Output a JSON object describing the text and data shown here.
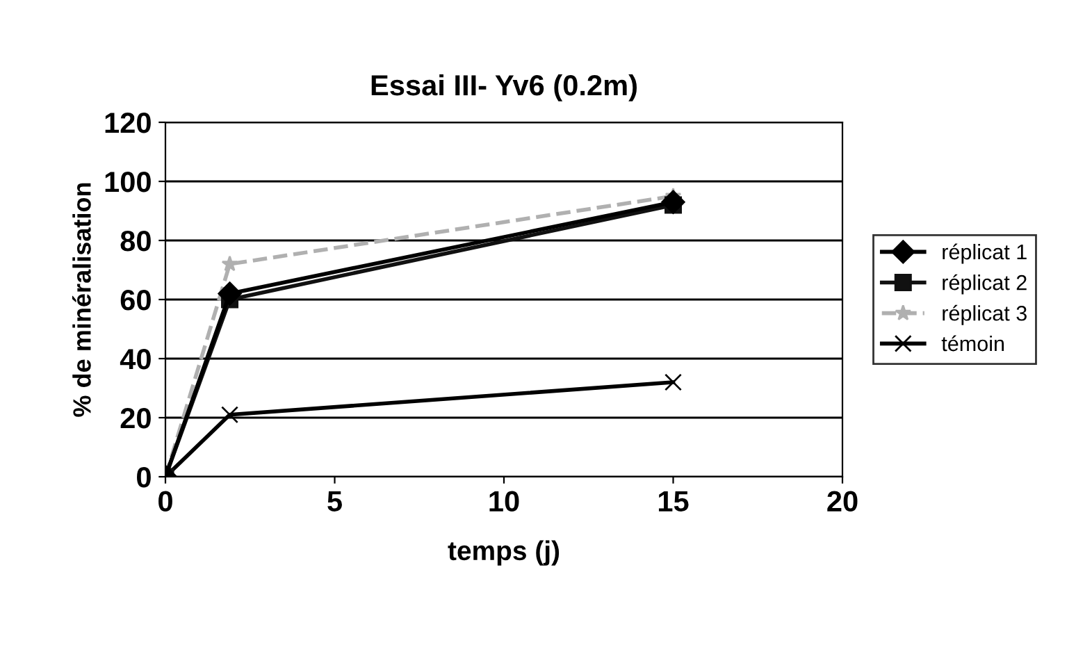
{
  "chart_data": {
    "type": "line",
    "title": "Essai III- Yv6 (0.2m)",
    "xlabel": "temps (j)",
    "ylabel": "% de minéralisation",
    "x": [
      0,
      1.9,
      15
    ],
    "series": [
      {
        "name": "réplicat 1",
        "color": "#000000",
        "marker": "diamond",
        "values": [
          0,
          62,
          93
        ]
      },
      {
        "name": "réplicat 2",
        "color": "#111111",
        "marker": "square",
        "values": [
          0,
          60,
          92
        ]
      },
      {
        "name": "réplicat 3",
        "color": "#b0b0b0",
        "marker": "star",
        "line_style": "dashed",
        "values": [
          0,
          72,
          95
        ]
      },
      {
        "name": "témoin",
        "color": "#000000",
        "marker": "cross",
        "values": [
          0,
          21,
          32
        ]
      }
    ],
    "xlim": [
      0,
      20
    ],
    "xticks": [
      0,
      5,
      10,
      15,
      20
    ],
    "ylim": [
      0,
      120
    ],
    "yticks": [
      0,
      20,
      40,
      60,
      80,
      100,
      120
    ],
    "grid": "y",
    "legend": "right"
  }
}
